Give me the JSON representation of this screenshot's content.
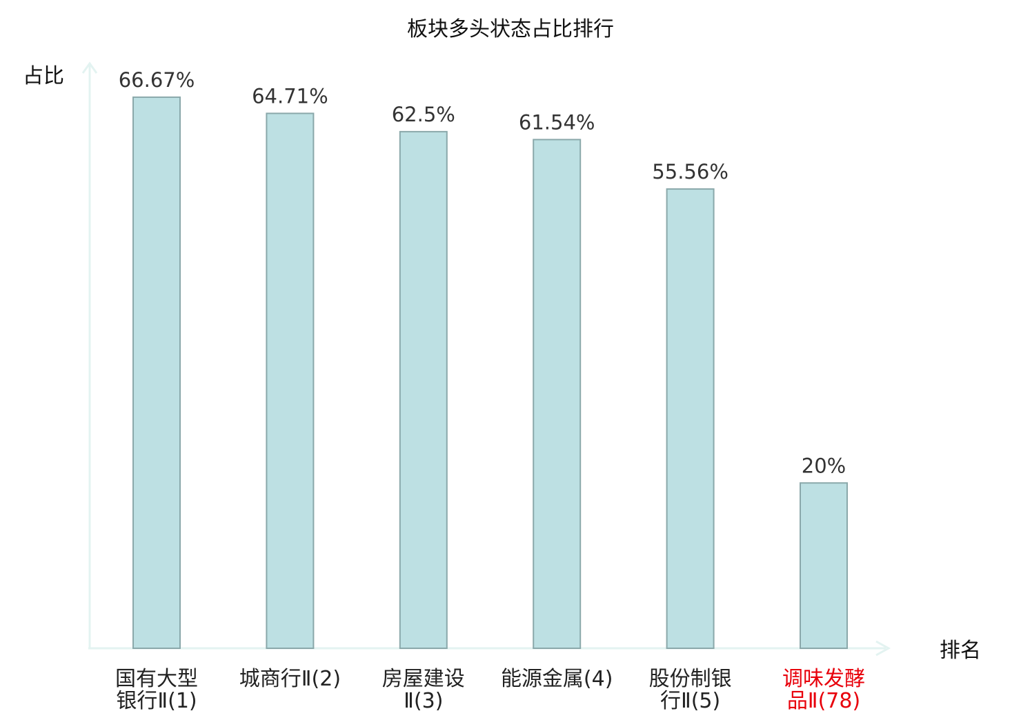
{
  "chart_data": {
    "type": "bar",
    "title": "板块多头状态占比排行",
    "xlabel": "排名",
    "ylabel": "占比",
    "categories": [
      [
        "国有大型",
        "银行Ⅱ(1)"
      ],
      [
        "城商行Ⅱ(2)"
      ],
      [
        "房屋建设",
        "Ⅱ(3)"
      ],
      [
        "能源金属(4)"
      ],
      [
        "股份制银",
        "行Ⅱ(5)"
      ],
      [
        "调味发酵",
        "品Ⅱ(78)"
      ]
    ],
    "values": [
      66.67,
      64.71,
      62.5,
      61.54,
      55.56,
      20
    ],
    "value_labels": [
      "66.67%",
      "64.71%",
      "62.5%",
      "61.54%",
      "55.56%",
      "20%"
    ],
    "highlighted_category_index": 5,
    "ylim": [
      0,
      70
    ],
    "grid": false,
    "legend": "none",
    "colors": {
      "bar_fill": "#bde0e3",
      "bar_stroke": "#8aa8aa",
      "axis": "#e3f3f1",
      "text": "#222222",
      "value_label": "#333333",
      "highlight": "#e8000b"
    }
  }
}
